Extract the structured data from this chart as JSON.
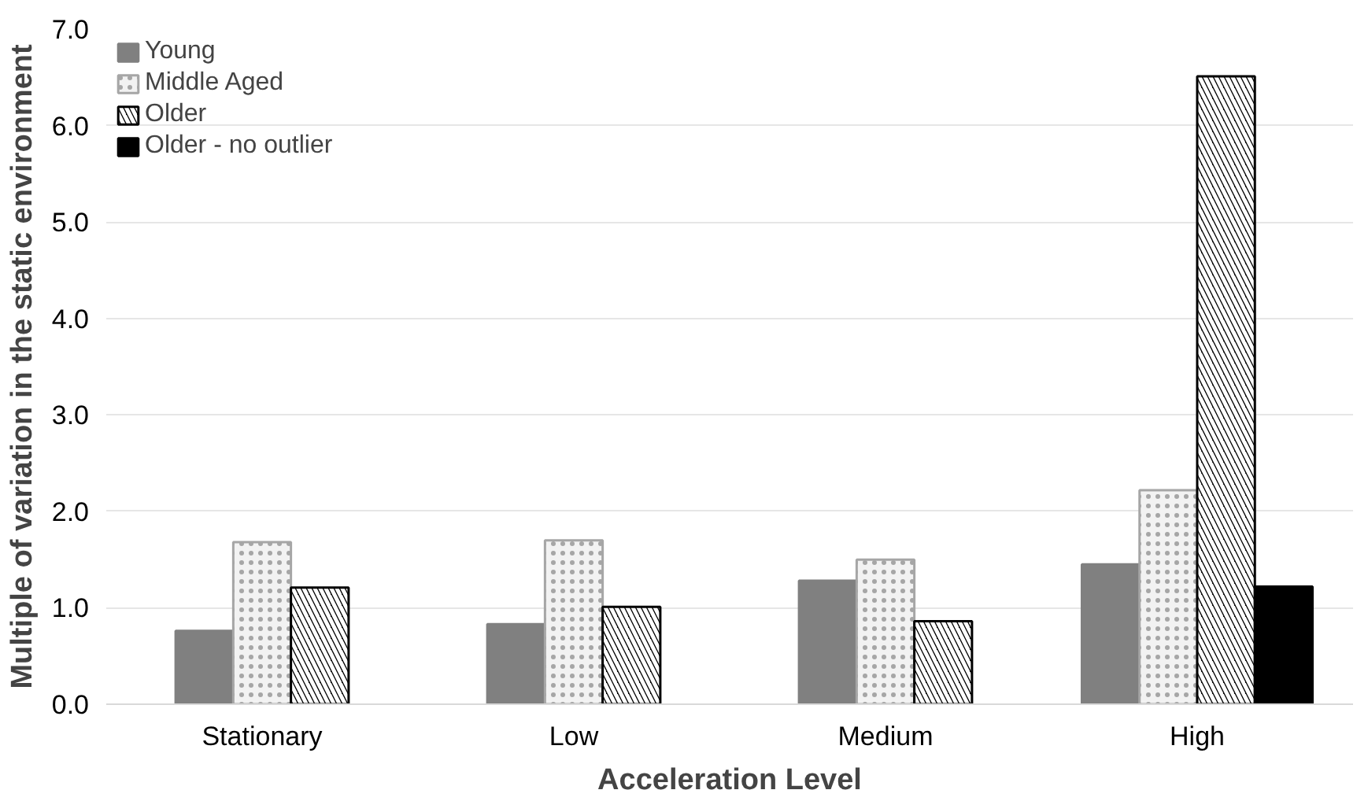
{
  "chart_data": {
    "type": "bar",
    "xlabel": "Acceleration Level",
    "ylabel": "Multiple of variation in the static environment",
    "categories": [
      "Stationary",
      "Low",
      "Medium",
      "High"
    ],
    "series": [
      {
        "name": "Young",
        "color": "#808080",
        "values": [
          0.76,
          0.83,
          1.28,
          1.45
        ]
      },
      {
        "name": "Middle Aged",
        "color": "#f2f2f2",
        "values": [
          1.68,
          1.7,
          1.5,
          2.22
        ]
      },
      {
        "name": "Older",
        "color": "#000000",
        "values": [
          1.21,
          1.01,
          0.86,
          6.51
        ]
      },
      {
        "name": "Older - no outlier",
        "color": "#000000",
        "values": [
          null,
          null,
          null,
          1.22
        ]
      }
    ],
    "ylim": [
      0,
      7
    ],
    "yticks": [
      {
        "value": 0,
        "label": "0.0"
      },
      {
        "value": 1,
        "label": "1.0"
      },
      {
        "value": 2,
        "label": "2.0"
      },
      {
        "value": 3,
        "label": "3.0"
      },
      {
        "value": 4,
        "label": "4.0"
      },
      {
        "value": 5,
        "label": "5.0"
      },
      {
        "value": 6,
        "label": "6.0"
      },
      {
        "value": 7,
        "label": "7.0"
      }
    ],
    "grid": "y",
    "legend": "top left"
  }
}
